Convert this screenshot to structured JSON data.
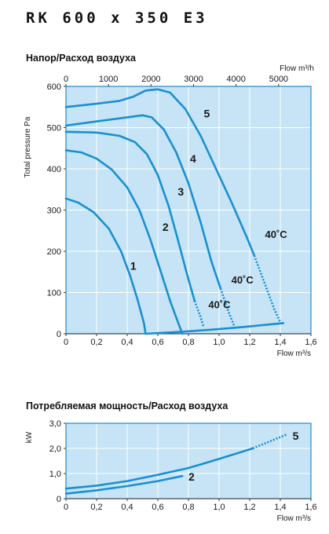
{
  "model": "RK 600 x 350 E3",
  "charts": {
    "pressure": {
      "title": "Напор/Расход воздуха",
      "top_axis_label": "Flow m³/h",
      "bottom_axis_label": "Flow m³/s",
      "y_axis_label": "Total pressure Pa"
    },
    "power": {
      "title": "Потребляемая мощность/Расход воздуха",
      "bottom_axis_label": "Flow m³/s",
      "y_axis_label": "kW"
    }
  },
  "colors": {
    "curve": "#1a8fd1",
    "frame": "#1e8ad0",
    "background": "#c6e4f6",
    "text": "#1a1a1a"
  },
  "chart_data": [
    {
      "type": "line",
      "title": "Напор/Расход воздуха",
      "xlabel": "Flow m³/s",
      "x2label": "Flow m³/h",
      "ylabel": "Total pressure Pa",
      "xlim": [
        0,
        1.6
      ],
      "ylim": [
        0,
        600
      ],
      "x_ticks": [
        "0",
        "0,2",
        "0,4",
        "0,6",
        "0,8",
        "1,0",
        "1,2",
        "1,4",
        "1,6"
      ],
      "y_ticks": [
        "0",
        "100",
        "200",
        "300",
        "400",
        "500",
        "600"
      ],
      "x2_ticks": [
        "0",
        "1000",
        "2000",
        "3000",
        "4000",
        "5000"
      ],
      "x2_tick_values": [
        0,
        1000,
        2000,
        3000,
        4000,
        5000
      ],
      "grid": true,
      "series": [
        {
          "name": "1",
          "solid": [
            [
              0,
              328
            ],
            [
              0.08,
              318
            ],
            [
              0.18,
              295
            ],
            [
              0.28,
              255
            ],
            [
              0.36,
              200
            ],
            [
              0.42,
              140
            ],
            [
              0.47,
              80
            ],
            [
              0.51,
              25
            ],
            [
              0.52,
              0
            ]
          ],
          "dashed": []
        },
        {
          "name": "2",
          "solid": [
            [
              0,
              445
            ],
            [
              0.1,
              440
            ],
            [
              0.2,
              425
            ],
            [
              0.3,
              398
            ],
            [
              0.4,
              355
            ],
            [
              0.48,
              300
            ],
            [
              0.55,
              230
            ],
            [
              0.62,
              150
            ],
            [
              0.68,
              80
            ],
            [
              0.73,
              30
            ],
            [
              0.76,
              0
            ]
          ],
          "dashed": []
        },
        {
          "name": "3",
          "solid": [
            [
              0,
              490
            ],
            [
              0.2,
              488
            ],
            [
              0.35,
              480
            ],
            [
              0.45,
              465
            ],
            [
              0.53,
              435
            ],
            [
              0.6,
              385
            ],
            [
              0.67,
              310
            ],
            [
              0.73,
              230
            ],
            [
              0.79,
              145
            ],
            [
              0.84,
              80
            ]
          ],
          "dashed": [
            [
              0.84,
              80
            ],
            [
              0.88,
              40
            ],
            [
              0.9,
              15
            ]
          ]
        },
        {
          "name": "4",
          "solid": [
            [
              0,
              505
            ],
            [
              0.2,
              515
            ],
            [
              0.4,
              525
            ],
            [
              0.5,
              530
            ],
            [
              0.56,
              525
            ],
            [
              0.64,
              495
            ],
            [
              0.72,
              440
            ],
            [
              0.8,
              365
            ],
            [
              0.88,
              270
            ],
            [
              0.95,
              175
            ],
            [
              1.01,
              110
            ]
          ],
          "dashed": [
            [
              1.01,
              110
            ],
            [
              1.06,
              55
            ],
            [
              1.1,
              18
            ]
          ]
        },
        {
          "name": "5",
          "solid": [
            [
              0,
              550
            ],
            [
              0.2,
              558
            ],
            [
              0.35,
              565
            ],
            [
              0.44,
              575
            ],
            [
              0.52,
              590
            ],
            [
              0.6,
              593
            ],
            [
              0.68,
              585
            ],
            [
              0.78,
              545
            ],
            [
              0.88,
              480
            ],
            [
              0.98,
              400
            ],
            [
              1.08,
              320
            ],
            [
              1.18,
              235
            ],
            [
              1.23,
              190
            ]
          ],
          "dashed": [
            [
              1.23,
              190
            ],
            [
              1.3,
              120
            ],
            [
              1.36,
              60
            ],
            [
              1.41,
              20
            ]
          ]
        },
        {
          "name": "system",
          "solid": [
            [
              0.52,
              0
            ],
            [
              0.76,
              5
            ],
            [
              0.95,
              10
            ],
            [
              1.15,
              16
            ],
            [
              1.42,
              26
            ]
          ],
          "dashed": []
        }
      ],
      "curve_labels": [
        {
          "text": "1",
          "x": 0.44,
          "y": 155
        },
        {
          "text": "2",
          "x": 0.65,
          "y": 250
        },
        {
          "text": "3",
          "x": 0.75,
          "y": 335
        },
        {
          "text": "4",
          "x": 0.83,
          "y": 415
        },
        {
          "text": "5",
          "x": 0.92,
          "y": 525
        }
      ],
      "annotations": [
        {
          "text": "40˚C",
          "x": 0.93,
          "y": 62
        },
        {
          "text": "40˚C",
          "x": 1.08,
          "y": 122
        },
        {
          "text": "40˚C",
          "x": 1.3,
          "y": 232
        }
      ]
    },
    {
      "type": "line",
      "title": "Потребляемая мощность/Расход воздуха",
      "xlabel": "Flow m³/s",
      "ylabel": "kW",
      "xlim": [
        0,
        1.6
      ],
      "ylim": [
        0,
        3.0
      ],
      "x_ticks": [
        "0",
        "0,2",
        "0,4",
        "0,6",
        "0,8",
        "1,0",
        "1,2",
        "1,4",
        "1,6"
      ],
      "y_ticks": [
        "0",
        "1,0",
        "2,0",
        "3,0"
      ],
      "grid": true,
      "series": [
        {
          "name": "2",
          "solid": [
            [
              0,
              0.2
            ],
            [
              0.2,
              0.33
            ],
            [
              0.4,
              0.5
            ],
            [
              0.6,
              0.7
            ],
            [
              0.76,
              0.9
            ]
          ],
          "dashed": []
        },
        {
          "name": "5",
          "solid": [
            [
              0,
              0.4
            ],
            [
              0.2,
              0.52
            ],
            [
              0.4,
              0.7
            ],
            [
              0.6,
              0.95
            ],
            [
              0.8,
              1.22
            ],
            [
              1.0,
              1.58
            ],
            [
              1.22,
              2.0
            ]
          ],
          "dashed": [
            [
              1.22,
              2.0
            ],
            [
              1.34,
              2.3
            ],
            [
              1.44,
              2.55
            ]
          ]
        }
      ],
      "curve_labels": [
        {
          "text": "2",
          "x": 0.82,
          "y": 0.72
        },
        {
          "text": "5",
          "x": 1.5,
          "y": 2.35
        }
      ]
    }
  ]
}
